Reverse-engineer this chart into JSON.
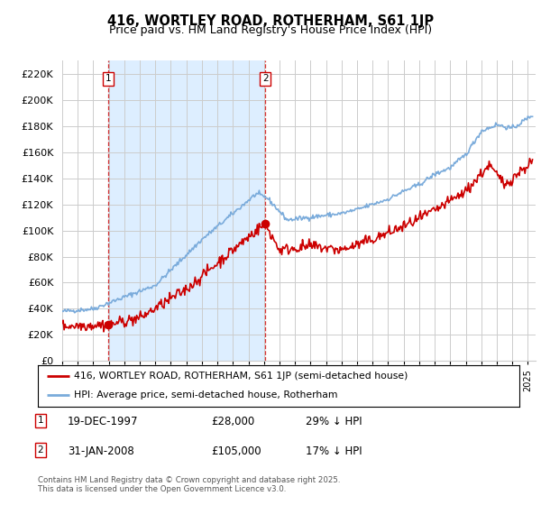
{
  "title1": "416, WORTLEY ROAD, ROTHERHAM, S61 1JP",
  "title2": "Price paid vs. HM Land Registry's House Price Index (HPI)",
  "ylim": [
    0,
    230000
  ],
  "yticks": [
    0,
    20000,
    40000,
    60000,
    80000,
    100000,
    120000,
    140000,
    160000,
    180000,
    200000,
    220000
  ],
  "ytick_labels": [
    "£0",
    "£20K",
    "£40K",
    "£60K",
    "£80K",
    "£100K",
    "£120K",
    "£140K",
    "£160K",
    "£180K",
    "£200K",
    "£220K"
  ],
  "price_color": "#cc0000",
  "hpi_color": "#7aabdb",
  "shade_color": "#ddeeff",
  "vline_color": "#cc0000",
  "marker1_date": 1997.97,
  "marker1_price": 28000,
  "marker1_label": "1",
  "marker2_date": 2008.08,
  "marker2_price": 105000,
  "marker2_label": "2",
  "legend_line1": "416, WORTLEY ROAD, ROTHERHAM, S61 1JP (semi-detached house)",
  "legend_line2": "HPI: Average price, semi-detached house, Rotherham",
  "annotation1_date": "19-DEC-1997",
  "annotation1_price": "£28,000",
  "annotation1_pct": "29% ↓ HPI",
  "annotation2_date": "31-JAN-2008",
  "annotation2_price": "£105,000",
  "annotation2_pct": "17% ↓ HPI",
  "copyright_text": "Contains HM Land Registry data © Crown copyright and database right 2025.\nThis data is licensed under the Open Government Licence v3.0.",
  "background_color": "#ffffff",
  "grid_color": "#cccccc",
  "xlim_left": 1995,
  "xlim_right": 2025.5
}
